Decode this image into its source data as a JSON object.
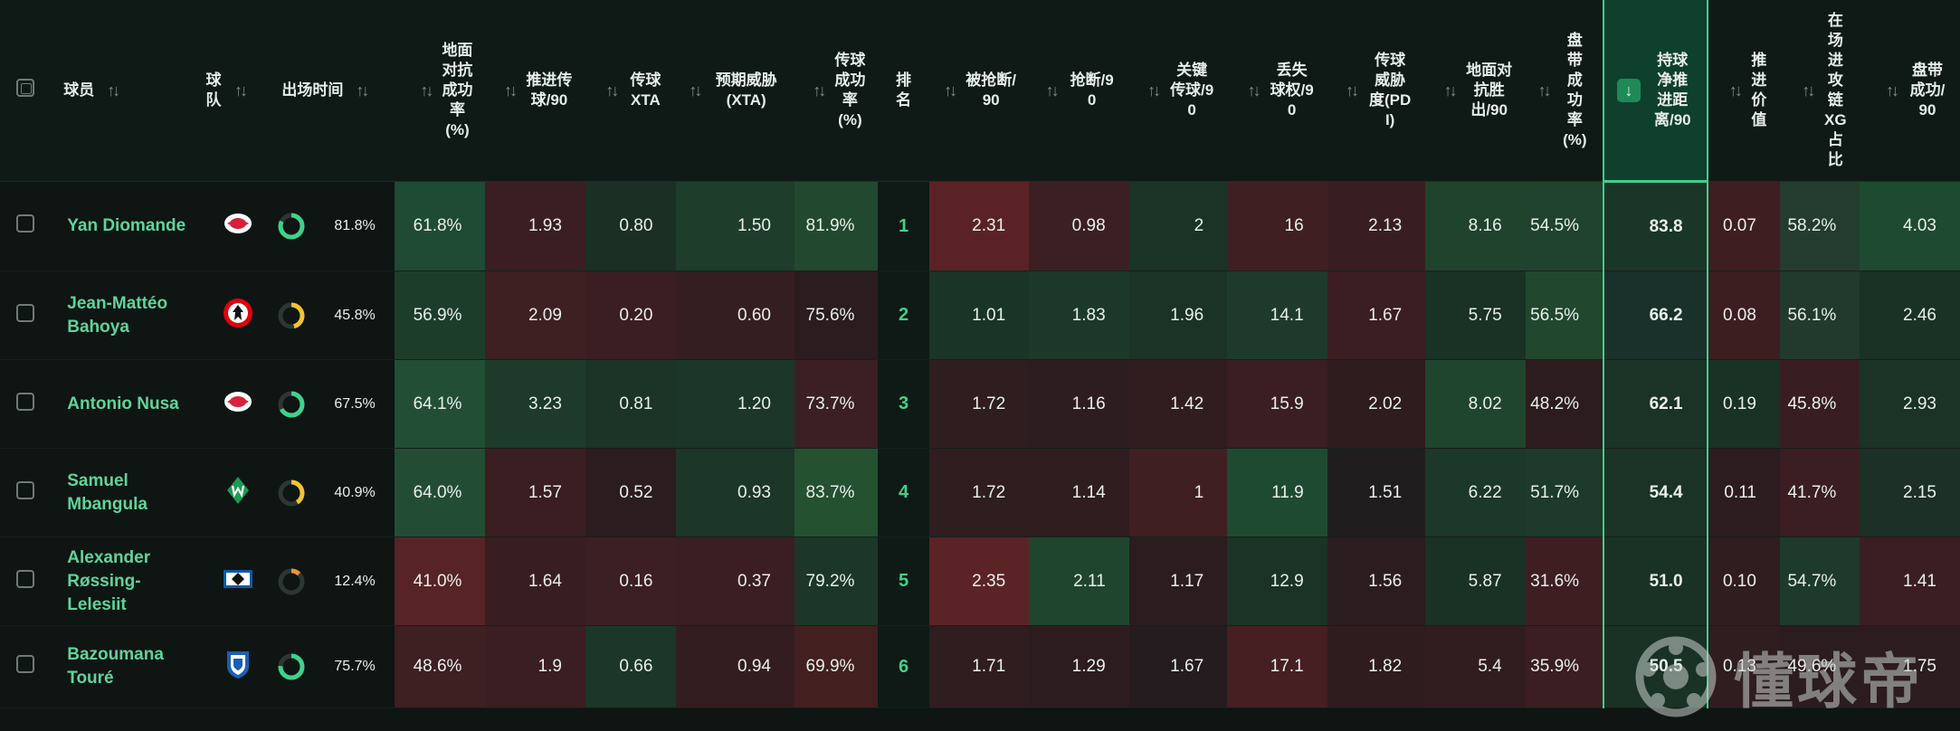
{
  "columns": {
    "player": "球员",
    "team": "球队",
    "minutes": "出场时间",
    "ground_duel": "地面对抗成功率(%)",
    "prog_pass": "推进传球/90",
    "pass_xta": "传球XTA",
    "xta": "预期威胁(XTA)",
    "pass_pct": "传球成功率(%)",
    "rank": "排名",
    "dispossessed": "被抢断/90",
    "tackles": "抢断/90",
    "key_pass": "关键传球/90",
    "lost_ball": "丢失球权/90",
    "pdi": "传球威胁度(PDI)",
    "ground_won": "地面对抗胜出/90",
    "dribble_pct": "盘带成功率(%)",
    "carry_dist": "持球净推进距离/90",
    "prog_value": "推进价值",
    "xg_chain": "在场进攻链XG占比",
    "dribble_succ": "盘带成功/90"
  },
  "colors": {
    "accent": "#3fcf8e",
    "ring_green": "#3fd28a",
    "ring_yellow": "#f2c230",
    "ring_orange": "#f0923a"
  },
  "rows": [
    {
      "name": "Yan Diomande",
      "team_icon": "leipzig-bull-icon",
      "minutes_pct": "81.8%",
      "minutes_frac": 0.818,
      "ring_color": "#3fd28a",
      "ground_duel": "61.8%",
      "prog_pass": "1.93",
      "pass_xta": "0.80",
      "xta": "1.50",
      "pass_pct": "81.9%",
      "rank": "1",
      "dispossessed": "2.31",
      "tackles": "0.98",
      "key_pass": "2",
      "lost_ball": "16",
      "pdi": "2.13",
      "ground_won": "8.16",
      "dribble_pct": "54.5%",
      "carry_dist": "83.8",
      "prog_value": "0.07",
      "xg_chain": "58.2%",
      "dribble_succ": "4.03",
      "bg": [
        "#1f4a33",
        "#3a1e21",
        "#1b2f25",
        "#1e3d2b",
        "#22492f",
        "#0f1a16",
        "#5a2226",
        "#3c1f22",
        "#1a3325",
        "#401f22",
        "#381e21",
        "#20432e",
        "#1f432e",
        "#1a3627",
        "#3e1e21",
        "#233c2d",
        "#1e4a31"
      ]
    },
    {
      "name": "Jean-Mattéo Bahoya",
      "team_icon": "frankfurt-eagle-icon",
      "minutes_pct": "45.8%",
      "minutes_frac": 0.458,
      "ring_color": "#f2c230",
      "ground_duel": "56.9%",
      "prog_pass": "2.09",
      "pass_xta": "0.20",
      "xta": "0.60",
      "pass_pct": "75.6%",
      "rank": "2",
      "dispossessed": "1.01",
      "tackles": "1.83",
      "key_pass": "1.96",
      "lost_ball": "14.1",
      "pdi": "1.67",
      "ground_won": "5.75",
      "dribble_pct": "56.5%",
      "carry_dist": "66.2",
      "prog_value": "0.08",
      "xg_chain": "56.1%",
      "dribble_succ": "2.46",
      "bg": [
        "#1d3d2b",
        "#3e1f22",
        "#3a1e21",
        "#351e21",
        "#2a1c1f",
        "#0f1a16",
        "#1a3527",
        "#1c3828",
        "#1a3326",
        "#1e3a2a",
        "#3a1e21",
        "#1a3125",
        "#21472f",
        "#19312a",
        "#3c1e21",
        "#213a2b",
        "#1a3125"
      ]
    },
    {
      "name": "Antonio Nusa",
      "team_icon": "leipzig-bull-icon",
      "minutes_pct": "67.5%",
      "minutes_frac": 0.675,
      "ring_color": "#3fd28a",
      "ground_duel": "64.1%",
      "prog_pass": "3.23",
      "pass_xta": "0.81",
      "xta": "1.20",
      "pass_pct": "73.7%",
      "rank": "3",
      "dispossessed": "1.72",
      "tackles": "1.16",
      "key_pass": "1.42",
      "lost_ball": "15.9",
      "pdi": "2.02",
      "ground_won": "8.02",
      "dribble_pct": "48.2%",
      "carry_dist": "62.1",
      "prog_value": "0.19",
      "xg_chain": "45.8%",
      "dribble_succ": "2.93",
      "bg": [
        "#224e35",
        "#1d3a2a",
        "#1c3327",
        "#1c3628",
        "#3c1f22",
        "#0f1a16",
        "#2f1d20",
        "#2e1d20",
        "#311d20",
        "#3b1e21",
        "#2e1c1f",
        "#1f452e",
        "#2c1c1f",
        "#1a3326",
        "#1a3125",
        "#381e21",
        "#1a3326"
      ]
    },
    {
      "name": "Samuel Mbangula",
      "team_icon": "bremen-w-icon",
      "minutes_pct": "40.9%",
      "minutes_frac": 0.409,
      "ring_color": "#f2c230",
      "ground_duel": "64.0%",
      "prog_pass": "1.57",
      "pass_xta": "0.52",
      "xta": "0.93",
      "pass_pct": "83.7%",
      "rank": "4",
      "dispossessed": "1.72",
      "tackles": "1.14",
      "key_pass": "1",
      "lost_ball": "11.9",
      "pdi": "1.51",
      "ground_won": "6.22",
      "dribble_pct": "51.7%",
      "carry_dist": "54.4",
      "prog_value": "0.11",
      "xg_chain": "41.7%",
      "dribble_succ": "2.15",
      "bg": [
        "#224d34",
        "#3a1e21",
        "#2b1c1f",
        "#1c3628",
        "#24512f",
        "#0f1a16",
        "#2f1d20",
        "#2f1d20",
        "#401f22",
        "#1f4a32",
        "#201d1f",
        "#1c3828",
        "#1d3a2a",
        "#1a3326",
        "#2d1c1f",
        "#3b1e21",
        "#1c3027"
      ]
    },
    {
      "name": "Alexander Røssing-Lelesiit",
      "team_icon": "hamburg-diamond-icon",
      "minutes_pct": "12.4%",
      "minutes_frac": 0.124,
      "ring_color": "#f0923a",
      "ground_duel": "41.0%",
      "prog_pass": "1.64",
      "pass_xta": "0.16",
      "xta": "0.37",
      "pass_pct": "79.2%",
      "rank": "5",
      "dispossessed": "2.35",
      "tackles": "2.11",
      "key_pass": "1.17",
      "lost_ball": "12.9",
      "pdi": "1.56",
      "ground_won": "5.87",
      "dribble_pct": "31.6%",
      "carry_dist": "51.0",
      "prog_value": "0.10",
      "xg_chain": "54.7%",
      "dribble_succ": "1.41",
      "bg": [
        "#572326",
        "#381e21",
        "#3c1f22",
        "#3a1e21",
        "#1c3627",
        "#0f1a16",
        "#5c2327",
        "#1f452e",
        "#2a1c1f",
        "#1a3326",
        "#2b1c1f",
        "#1a3125",
        "#3f1e22",
        "#1a3226",
        "#2f1d20",
        "#1d3a2b",
        "#3a1e21"
      ]
    },
    {
      "name": "Bazoumana Touré",
      "team_icon": "hoffenheim-crest-icon",
      "minutes_pct": "75.7%",
      "minutes_frac": 0.757,
      "ring_color": "#3fd28a",
      "ground_duel": "48.6%",
      "prog_pass": "1.9",
      "pass_xta": "0.66",
      "xta": "0.94",
      "pass_pct": "69.9%",
      "rank": "6",
      "dispossessed": "1.71",
      "tackles": "1.29",
      "key_pass": "1.67",
      "lost_ball": "17.1",
      "pdi": "1.82",
      "ground_won": "5.4",
      "dribble_pct": "35.9%",
      "carry_dist": "50.5",
      "prog_value": "0.13",
      "xg_chain": "49.6%",
      "dribble_succ": "1.75",
      "bg": [
        "#3e1f22",
        "#3a1e21",
        "#1c3627",
        "#341d20",
        "#42201f",
        "#0f1a16",
        "#2f1d20",
        "#2d1c1f",
        "#241c1f",
        "#451f22",
        "#2e1c1f",
        "#311d20",
        "#3b1e21",
        "#1a3226",
        "#2f1d20",
        "#2b1c1f",
        "#2c1c1f"
      ]
    }
  ],
  "watermark": "懂球帝"
}
